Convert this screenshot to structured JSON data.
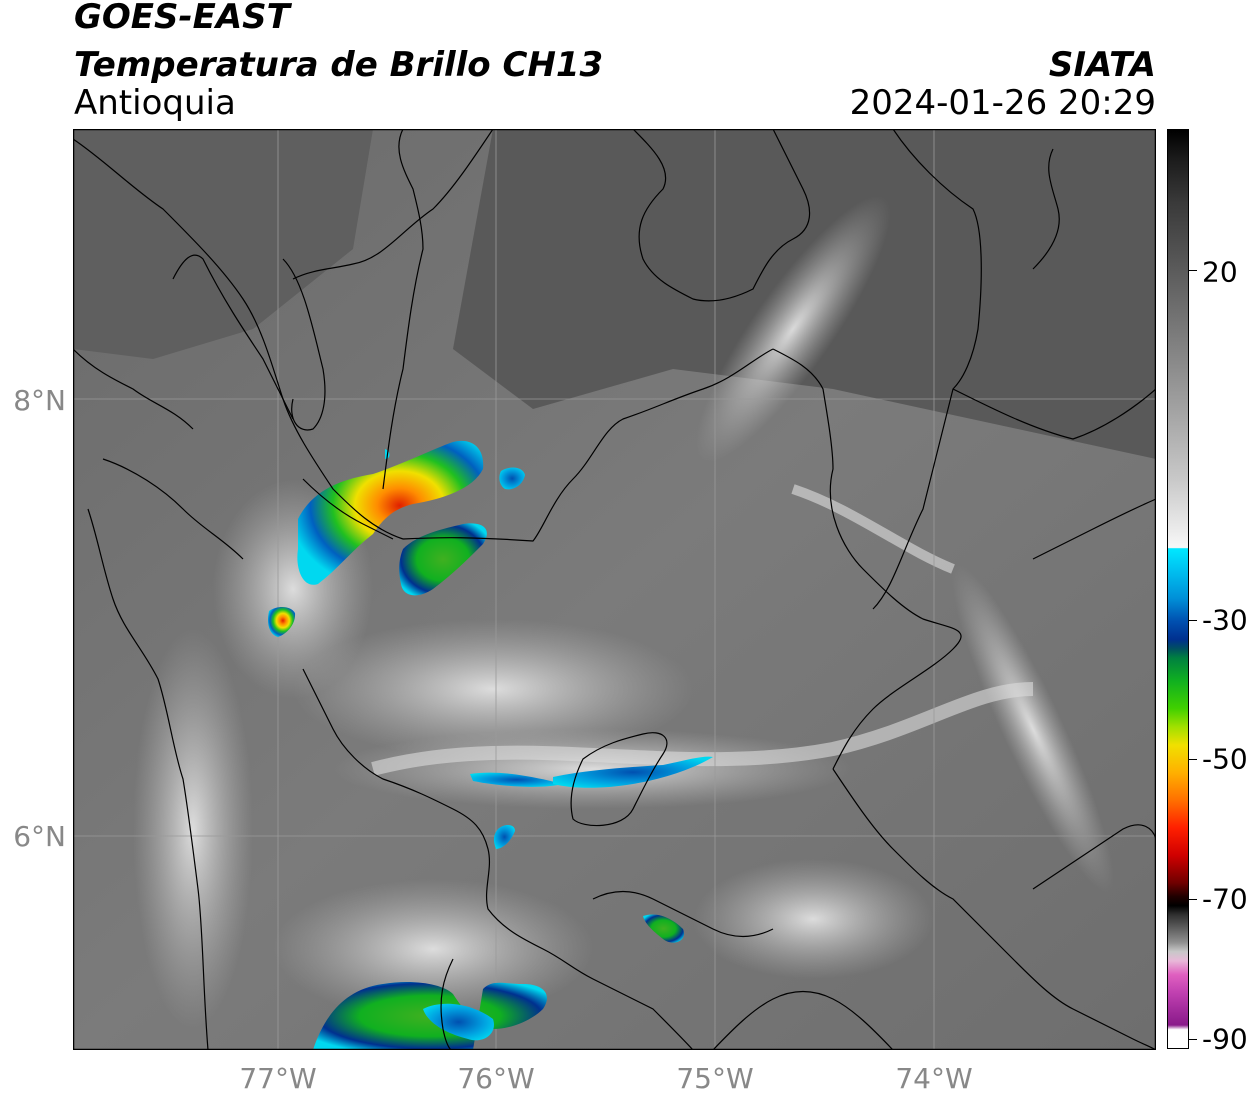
{
  "header": {
    "satellite": "GOES-EAST",
    "product": "Temperatura de Brillo CH13",
    "region": "Antioquia",
    "agency": "SIATA",
    "datetime": "2024-01-26 20:29"
  },
  "map": {
    "lat_labels": [
      "8°N",
      "6°N"
    ],
    "lon_labels": [
      "77°W",
      "76°W",
      "75°W",
      "74°W"
    ],
    "colorbar": {
      "ticks": [
        "20",
        "-30",
        "-50",
        "-70",
        "-90"
      ],
      "colors": {
        "warm_gray": "#3a3a3a",
        "cold_white": "#f5f5f5",
        "cyan": "#00d8f0",
        "blue": "#00308f",
        "green": "#10b020",
        "yellow": "#f0e000",
        "orange": "#ff8000",
        "red": "#e00000",
        "black": "#000000",
        "pink": "#e060b0",
        "purple": "#8a1a8a"
      }
    }
  }
}
